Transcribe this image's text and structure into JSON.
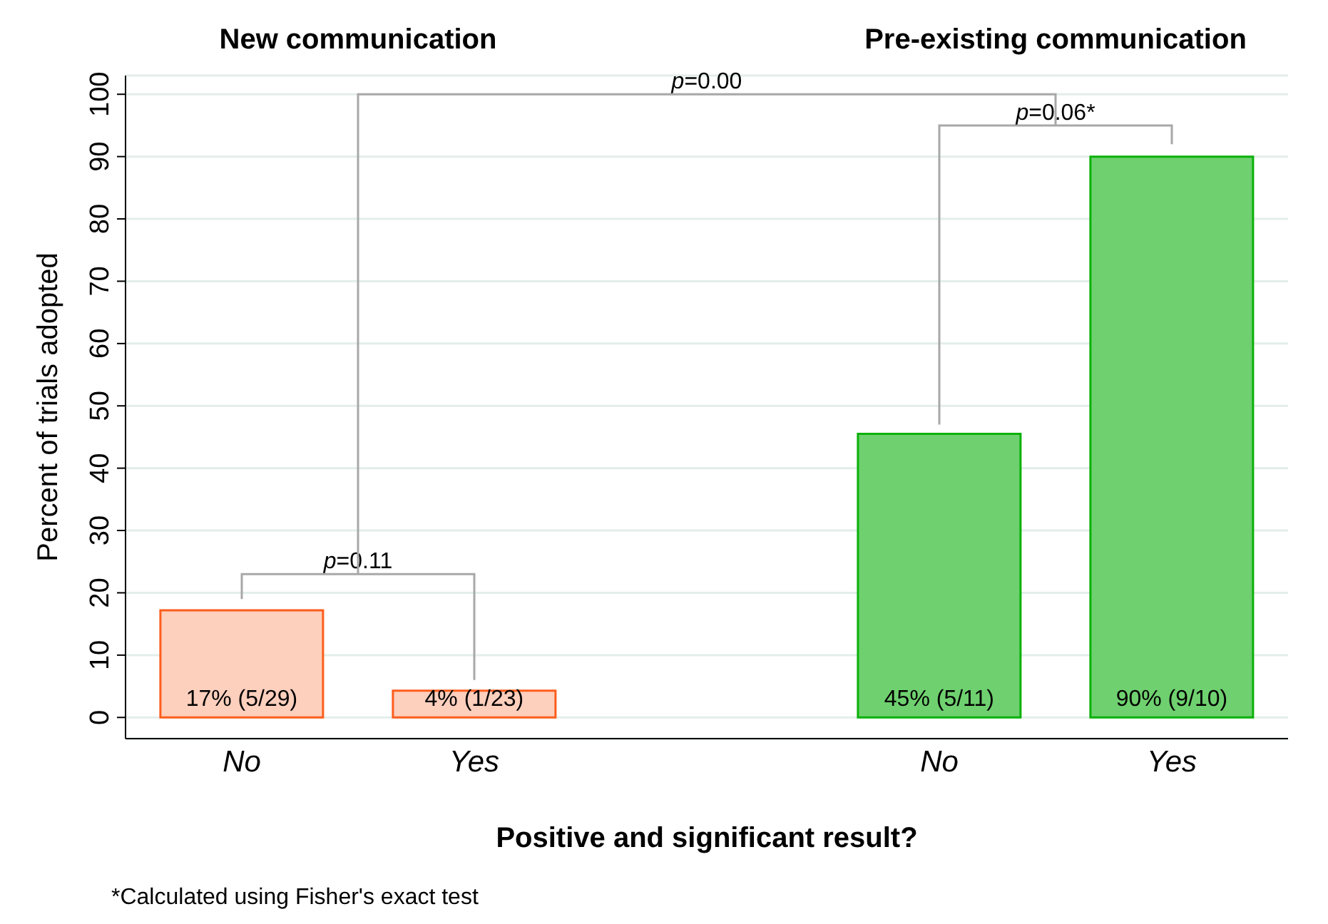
{
  "chart_data": {
    "type": "bar",
    "xlabel": "Positive and significant result?",
    "ylabel": "Percent of trials adopted",
    "categories": [
      "No",
      "Yes",
      null,
      "No",
      "Yes"
    ],
    "values": [
      17.2,
      4.3,
      null,
      45.5,
      90
    ],
    "colors": [
      "#fdcfbd",
      "#fdcfbd",
      "#ffffff",
      "#6fd06f",
      "#6fd06f"
    ],
    "value_labels": [
      "17% (5/29)",
      "4% (1/23)",
      null,
      "45% (5/11)",
      "90% (9/10)"
    ],
    "ylim": [
      -3.4,
      103
    ],
    "yticks": [
      0,
      10,
      20,
      30,
      40,
      50,
      60,
      70,
      80,
      90,
      100
    ],
    "grid": "y",
    "annotations": [
      "New communication",
      "Pre-existing communication",
      "p=0.11",
      "p=0.00",
      "p=0.06*",
      "*Calculated using Fisher's exact test"
    ]
  }
}
